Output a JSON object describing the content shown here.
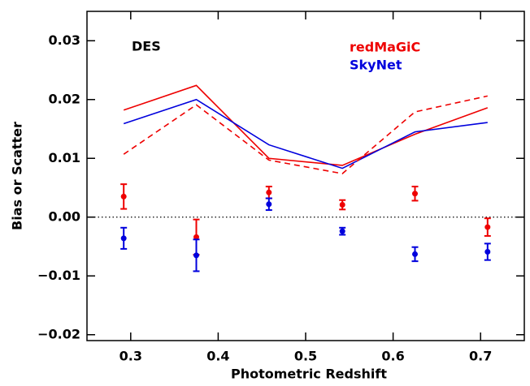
{
  "chart_data": {
    "type": "line",
    "annotation": "DES",
    "x_label": "Photometric Redshift",
    "y_label": "Bias or Scatter",
    "x": [
      0.292,
      0.375,
      0.458,
      0.542,
      0.625,
      0.708
    ],
    "xlim": [
      0.25,
      0.75
    ],
    "xticks": [
      0.3,
      0.4,
      0.5,
      0.6,
      0.7
    ],
    "ylim": [
      -0.021,
      0.035
    ],
    "yticks": [
      {
        "value": -0.02,
        "label": "−0.02"
      },
      {
        "value": -0.01,
        "label": "−0.01"
      },
      {
        "value": 0,
        "label": "0.00"
      },
      0.01,
      0.02,
      0.03
    ],
    "reference_line": {
      "value": 0,
      "style": "dotted"
    },
    "legend": [
      {
        "name": "redMaGiC",
        "color": "#ee0000"
      },
      {
        "name": "SkyNet",
        "color": "#0000dd"
      }
    ],
    "legend_position": "upper right",
    "series": [
      {
        "color": "#ee0000",
        "style": "solid",
        "values": [
          0.0182,
          0.0224,
          0.01,
          0.0088,
          0.0141,
          0.0186
        ]
      },
      {
        "color": "#0000dd",
        "style": "solid",
        "values": [
          0.0159,
          0.02,
          0.0123,
          0.0083,
          0.0145,
          0.0161
        ]
      },
      {
        "color": "#ee0000",
        "style": "dashed",
        "values": [
          0.0107,
          0.0191,
          0.0097,
          0.0074,
          0.0179,
          0.0206
        ]
      },
      {
        "color": "#ee0000",
        "style": "errorbar",
        "values": [
          0.0035,
          -0.0034,
          0.0042,
          0.0021,
          0.004,
          -0.0017
        ],
        "errors": [
          0.0021,
          0.003,
          0.001,
          0.0008,
          0.0012,
          0.0015
        ]
      },
      {
        "color": "#0000dd",
        "style": "errorbar",
        "values": [
          -0.0036,
          -0.0065,
          0.0022,
          -0.0024,
          -0.0063,
          -0.0059
        ],
        "errors": [
          0.0018,
          0.0027,
          0.001,
          0.0006,
          0.0012,
          0.0014
        ]
      }
    ]
  }
}
